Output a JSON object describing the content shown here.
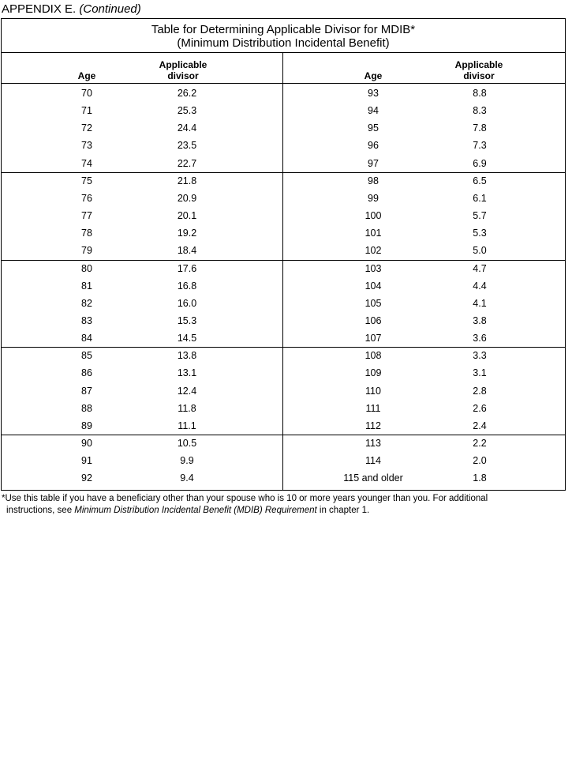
{
  "appendix": {
    "label": "APPENDIX E.",
    "continued": "(Continued)"
  },
  "table": {
    "title_line1": "Table for Determining Applicable Divisor for MDIB*",
    "title_line2": "(Minimum Distribution Incidental Benefit)",
    "headers": {
      "age": "Age",
      "divisor_line1": "Applicable",
      "divisor_line2": "divisor"
    },
    "left_rows": [
      [
        "70",
        "26.2"
      ],
      [
        "71",
        "25.3"
      ],
      [
        "72",
        "24.4"
      ],
      [
        "73",
        "23.5"
      ],
      [
        "74",
        "22.7"
      ],
      [
        "75",
        "21.8"
      ],
      [
        "76",
        "20.9"
      ],
      [
        "77",
        "20.1"
      ],
      [
        "78",
        "19.2"
      ],
      [
        "79",
        "18.4"
      ],
      [
        "80",
        "17.6"
      ],
      [
        "81",
        "16.8"
      ],
      [
        "82",
        "16.0"
      ],
      [
        "83",
        "15.3"
      ],
      [
        "84",
        "14.5"
      ],
      [
        "85",
        "13.8"
      ],
      [
        "86",
        "13.1"
      ],
      [
        "87",
        "12.4"
      ],
      [
        "88",
        "11.8"
      ],
      [
        "89",
        "11.1"
      ],
      [
        "90",
        "10.5"
      ],
      [
        "91",
        "9.9"
      ],
      [
        "92",
        "9.4"
      ]
    ],
    "right_rows": [
      [
        "93",
        "8.8"
      ],
      [
        "94",
        "8.3"
      ],
      [
        "95",
        "7.8"
      ],
      [
        "96",
        "7.3"
      ],
      [
        "97",
        "6.9"
      ],
      [
        "98",
        "6.5"
      ],
      [
        "99",
        "6.1"
      ],
      [
        "100",
        "5.7"
      ],
      [
        "101",
        "5.3"
      ],
      [
        "102",
        "5.0"
      ],
      [
        "103",
        "4.7"
      ],
      [
        "104",
        "4.4"
      ],
      [
        "105",
        "4.1"
      ],
      [
        "106",
        "3.8"
      ],
      [
        "107",
        "3.6"
      ],
      [
        "108",
        "3.3"
      ],
      [
        "109",
        "3.1"
      ],
      [
        "110",
        "2.8"
      ],
      [
        "111",
        "2.6"
      ],
      [
        "112",
        "2.4"
      ],
      [
        "113",
        "2.2"
      ],
      [
        "114",
        "2.0"
      ],
      [
        "115 and older",
        "1.8"
      ]
    ]
  },
  "footnote": {
    "line1": "*Use this table if you have a beneficiary other than your spouse who is 10 or more years younger than you. For additional",
    "line2_pre": "instructions, see ",
    "line2_italic": "Minimum Distribution Incidental Benefit (MDIB) Requirement",
    "line2_post": " in chapter 1."
  }
}
